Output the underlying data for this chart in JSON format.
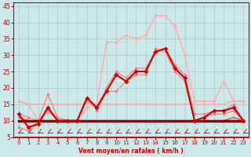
{
  "xlabel": "Vent moyen/en rafales ( km/h )",
  "background_color": "#cce8e8",
  "grid_color": "#aacccc",
  "x": [
    0,
    1,
    2,
    3,
    4,
    5,
    6,
    7,
    8,
    9,
    10,
    11,
    12,
    13,
    14,
    15,
    16,
    17,
    18,
    19,
    20,
    21,
    22,
    23
  ],
  "ylim": [
    5,
    46
  ],
  "xlim": [
    -0.5,
    23.5
  ],
  "yticks": [
    5,
    10,
    15,
    20,
    25,
    30,
    35,
    40,
    45
  ],
  "line_light_top": [
    16,
    15,
    10,
    13,
    11,
    10,
    10,
    14,
    15,
    34,
    34,
    36,
    35,
    36,
    42,
    42,
    39,
    30,
    16,
    16,
    16,
    22,
    16,
    16
  ],
  "line_medium1": [
    12,
    11,
    10,
    18,
    11,
    10,
    10,
    16,
    14,
    20,
    25,
    23,
    26,
    26,
    31,
    32,
    27,
    24,
    12,
    12,
    13,
    13,
    15,
    10
  ],
  "line_dark_main": [
    12,
    8,
    9,
    14,
    10,
    10,
    10,
    17,
    14,
    19,
    24,
    22,
    25,
    25,
    31,
    32,
    26,
    23,
    10,
    11,
    13,
    13,
    14,
    10
  ],
  "line_medium2": [
    8,
    7,
    9,
    13,
    10,
    10,
    10,
    17,
    13,
    19,
    19,
    22,
    24,
    24,
    32,
    31,
    25,
    22,
    10,
    11,
    12,
    12,
    13,
    10
  ],
  "line_flat_med": [
    16,
    15,
    15,
    15,
    15,
    15,
    15,
    15,
    15,
    15,
    15,
    15,
    15,
    15,
    15,
    15,
    15,
    15,
    15,
    15,
    15,
    15,
    16,
    16
  ],
  "line_flat_low": [
    11,
    10,
    10,
    10,
    10,
    10,
    10,
    10,
    10,
    10,
    10,
    10,
    10,
    10,
    10,
    10,
    10,
    10,
    10,
    10,
    10,
    10,
    11,
    10
  ],
  "line_flat_low2": [
    11,
    10,
    10,
    10,
    10,
    10,
    10,
    10,
    10,
    10,
    10,
    10,
    10,
    10,
    10,
    10,
    10,
    10,
    10,
    10,
    10,
    10,
    11,
    10
  ],
  "line_flat_low3": [
    10,
    10,
    10,
    10,
    10,
    10,
    10,
    10,
    10,
    10,
    10,
    10,
    10,
    10,
    10,
    10,
    10,
    10,
    10,
    10,
    10,
    10,
    10,
    10
  ],
  "color_light": "#ffaaaa",
  "color_medium": "#ff7777",
  "color_dark": "#cc0000",
  "color_vdark": "#990000"
}
